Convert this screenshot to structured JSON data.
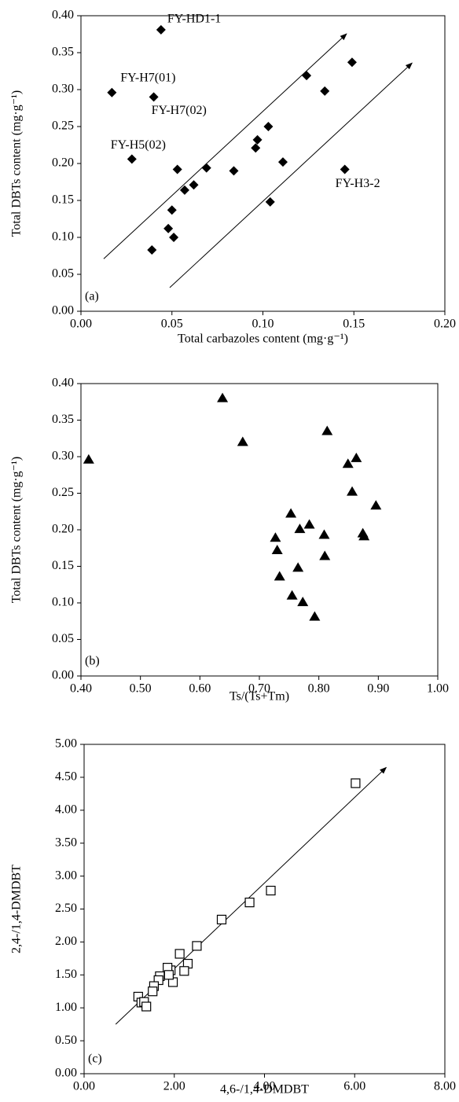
{
  "chart_data": [
    {
      "type": "scatter",
      "panel_label": "(a)",
      "x_label": "Total carbazoles content (mg·g⁻¹)",
      "y_label": "Total DBTs content (mg·g⁻¹)",
      "marker": "diamond",
      "color": "#000000",
      "x": [
        0.044,
        0.017,
        0.04,
        0.028,
        0.053,
        0.069,
        0.057,
        0.062,
        0.05,
        0.048,
        0.051,
        0.039,
        0.084,
        0.096,
        0.097,
        0.103,
        0.111,
        0.104,
        0.124,
        0.134,
        0.149,
        0.145
      ],
      "values": [
        0.381,
        0.296,
        0.29,
        0.206,
        0.192,
        0.194,
        0.164,
        0.171,
        0.137,
        0.112,
        0.1,
        0.083,
        0.19,
        0.221,
        0.232,
        0.25,
        0.202,
        0.148,
        0.319,
        0.298,
        0.337,
        0.192
      ],
      "point_labels": [
        "FY-HD1-1",
        "FY-H7(01)",
        "FY-H7(02)",
        "FY-H5(02)",
        null,
        null,
        null,
        null,
        null,
        null,
        null,
        null,
        null,
        null,
        null,
        null,
        null,
        null,
        null,
        null,
        null,
        "FY-H3-2"
      ],
      "arrows": [
        {
          "x": [
            0.0125,
            0.146
          ],
          "y": [
            0.071,
            0.3755
          ]
        },
        {
          "x": [
            0.0488,
            0.182
          ],
          "y": [
            0.032,
            0.336
          ]
        }
      ],
      "xlim": [
        0,
        0.2
      ],
      "ylim": [
        0,
        0.4
      ],
      "xticks": [
        {
          "value": 0,
          "label": "0.00"
        },
        {
          "value": 0.05,
          "label": "0.05"
        },
        {
          "value": 0.1,
          "label": "0.10"
        },
        {
          "value": 0.15,
          "label": "0.15"
        },
        {
          "value": 0.2,
          "label": "0.20"
        }
      ],
      "yticks": [
        {
          "value": 0,
          "label": "0.00"
        },
        {
          "value": 0.05,
          "label": "0.05"
        },
        {
          "value": 0.1,
          "label": "0.10"
        },
        {
          "value": 0.15,
          "label": "0.15"
        },
        {
          "value": 0.2,
          "label": "0.20"
        },
        {
          "value": 0.25,
          "label": "0.25"
        },
        {
          "value": 0.3,
          "label": "0.30"
        },
        {
          "value": 0.35,
          "label": "0.35"
        },
        {
          "value": 0.4,
          "label": "0.40"
        }
      ]
    },
    {
      "type": "scatter",
      "panel_label": "(b)",
      "x_label": "Ts/(Ts+Tm)",
      "y_label": "Total DBTs content (mg·g⁻¹)",
      "marker": "triangle",
      "color": "#000000",
      "x": [
        0.413,
        0.638,
        0.672,
        0.814,
        0.849,
        0.863,
        0.856,
        0.896,
        0.753,
        0.784,
        0.768,
        0.727,
        0.809,
        0.874,
        0.876,
        0.73,
        0.81,
        0.765,
        0.734,
        0.755,
        0.773,
        0.793
      ],
      "values": [
        0.296,
        0.38,
        0.32,
        0.335,
        0.29,
        0.298,
        0.252,
        0.233,
        0.222,
        0.207,
        0.201,
        0.189,
        0.193,
        0.195,
        0.191,
        0.172,
        0.164,
        0.148,
        0.136,
        0.11,
        0.101,
        0.081
      ],
      "xlim": [
        0.4,
        1.0
      ],
      "ylim": [
        0,
        0.4
      ],
      "xticks": [
        {
          "value": 0.4,
          "label": "0.40"
        },
        {
          "value": 0.5,
          "label": "0.50"
        },
        {
          "value": 0.6,
          "label": "0.60"
        },
        {
          "value": 0.7,
          "label": "0.70"
        },
        {
          "value": 0.8,
          "label": "0.80"
        },
        {
          "value": 0.9,
          "label": "0.90"
        },
        {
          "value": 1.0,
          "label": "1.00"
        }
      ],
      "yticks": [
        {
          "value": 0,
          "label": "0.00"
        },
        {
          "value": 0.05,
          "label": "0.05"
        },
        {
          "value": 0.1,
          "label": "0.10"
        },
        {
          "value": 0.15,
          "label": "0.15"
        },
        {
          "value": 0.2,
          "label": "0.20"
        },
        {
          "value": 0.25,
          "label": "0.25"
        },
        {
          "value": 0.3,
          "label": "0.30"
        },
        {
          "value": 0.35,
          "label": "0.35"
        },
        {
          "value": 0.4,
          "label": "0.40"
        }
      ]
    },
    {
      "type": "scatter",
      "panel_label": "(c)",
      "x_label": "4,6-/1,4-DMDBT",
      "y_label": "2,4-/1,4-DMDBT",
      "marker": "square",
      "color": "#000000",
      "x": [
        6.02,
        4.14,
        3.67,
        3.05,
        2.5,
        2.3,
        2.22,
        2.12,
        1.97,
        1.92,
        1.85,
        1.88,
        1.68,
        1.65,
        1.55,
        1.52,
        1.2,
        1.27,
        1.33,
        1.38
      ],
      "values": [
        4.41,
        2.78,
        2.6,
        2.34,
        1.94,
        1.67,
        1.56,
        1.82,
        1.39,
        1.57,
        1.61,
        1.5,
        1.48,
        1.42,
        1.33,
        1.25,
        1.17,
        1.08,
        1.09,
        1.02
      ],
      "arrows": [
        {
          "x": [
            0.7,
            6.7
          ],
          "y": [
            0.75,
            4.65
          ]
        }
      ],
      "xlim": [
        0,
        8
      ],
      "ylim": [
        0,
        5
      ],
      "xticks": [
        {
          "value": 0,
          "label": "0.00"
        },
        {
          "value": 2,
          "label": "2.00"
        },
        {
          "value": 4,
          "label": "4.00"
        },
        {
          "value": 6,
          "label": "6.00"
        },
        {
          "value": 8,
          "label": "8.00"
        }
      ],
      "yticks": [
        {
          "value": 0,
          "label": "0.00"
        },
        {
          "value": 0.5,
          "label": "0.50"
        },
        {
          "value": 1,
          "label": "1.00"
        },
        {
          "value": 1.5,
          "label": "1.50"
        },
        {
          "value": 2,
          "label": "2.00"
        },
        {
          "value": 2.5,
          "label": "2.50"
        },
        {
          "value": 3,
          "label": "3.00"
        },
        {
          "value": 3.5,
          "label": "3.50"
        },
        {
          "value": 4,
          "label": "4.00"
        },
        {
          "value": 4.5,
          "label": "4.50"
        },
        {
          "value": 5,
          "label": "5.00"
        }
      ]
    }
  ]
}
